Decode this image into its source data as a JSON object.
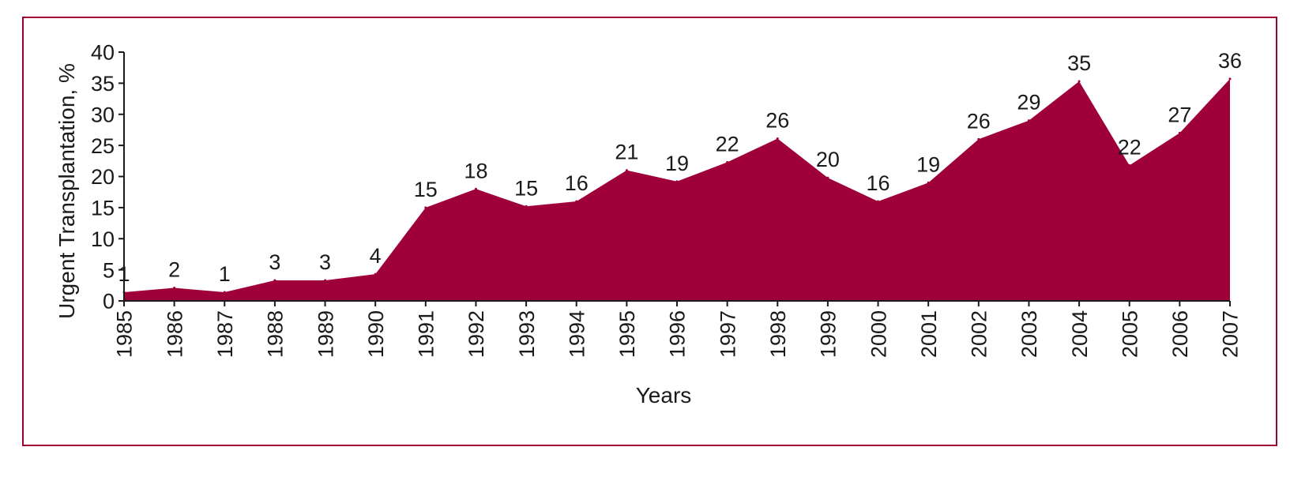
{
  "chart_data": {
    "type": "area",
    "title": "",
    "xlabel": "Years",
    "ylabel": "Urgent Transplantation, %",
    "ylim": [
      0,
      40
    ],
    "yticks": [
      0,
      5,
      10,
      15,
      20,
      25,
      30,
      35,
      40
    ],
    "grid": false,
    "legend": "none",
    "categories": [
      "1985",
      "1986",
      "1987",
      "1988",
      "1989",
      "1990",
      "1991",
      "1992",
      "1993",
      "1994",
      "1995",
      "1996",
      "1997",
      "1998",
      "1999",
      "2000",
      "2001",
      "2002",
      "2003",
      "2004",
      "2005",
      "2006",
      "2007"
    ],
    "values": [
      1.4,
      2.1,
      1.4,
      3.3,
      3.3,
      4.3,
      15.0,
      18.0,
      15.2,
      16.0,
      21.0,
      19.2,
      22.3,
      26.1,
      19.8,
      16.0,
      19.0,
      26.0,
      29.0,
      35.3,
      21.8,
      27.0,
      35.7
    ],
    "data_labels": [
      "1",
      "2",
      "1",
      "3",
      "3",
      "4",
      "15",
      "18",
      "15",
      "16",
      "21",
      "19",
      "22",
      "26",
      "20",
      "16",
      "19",
      "26",
      "29",
      "35",
      "22",
      "27",
      "36"
    ],
    "colors": {
      "fill": "#a0003a",
      "frame": "#a0003a",
      "axis": "#1a1a1a"
    }
  }
}
